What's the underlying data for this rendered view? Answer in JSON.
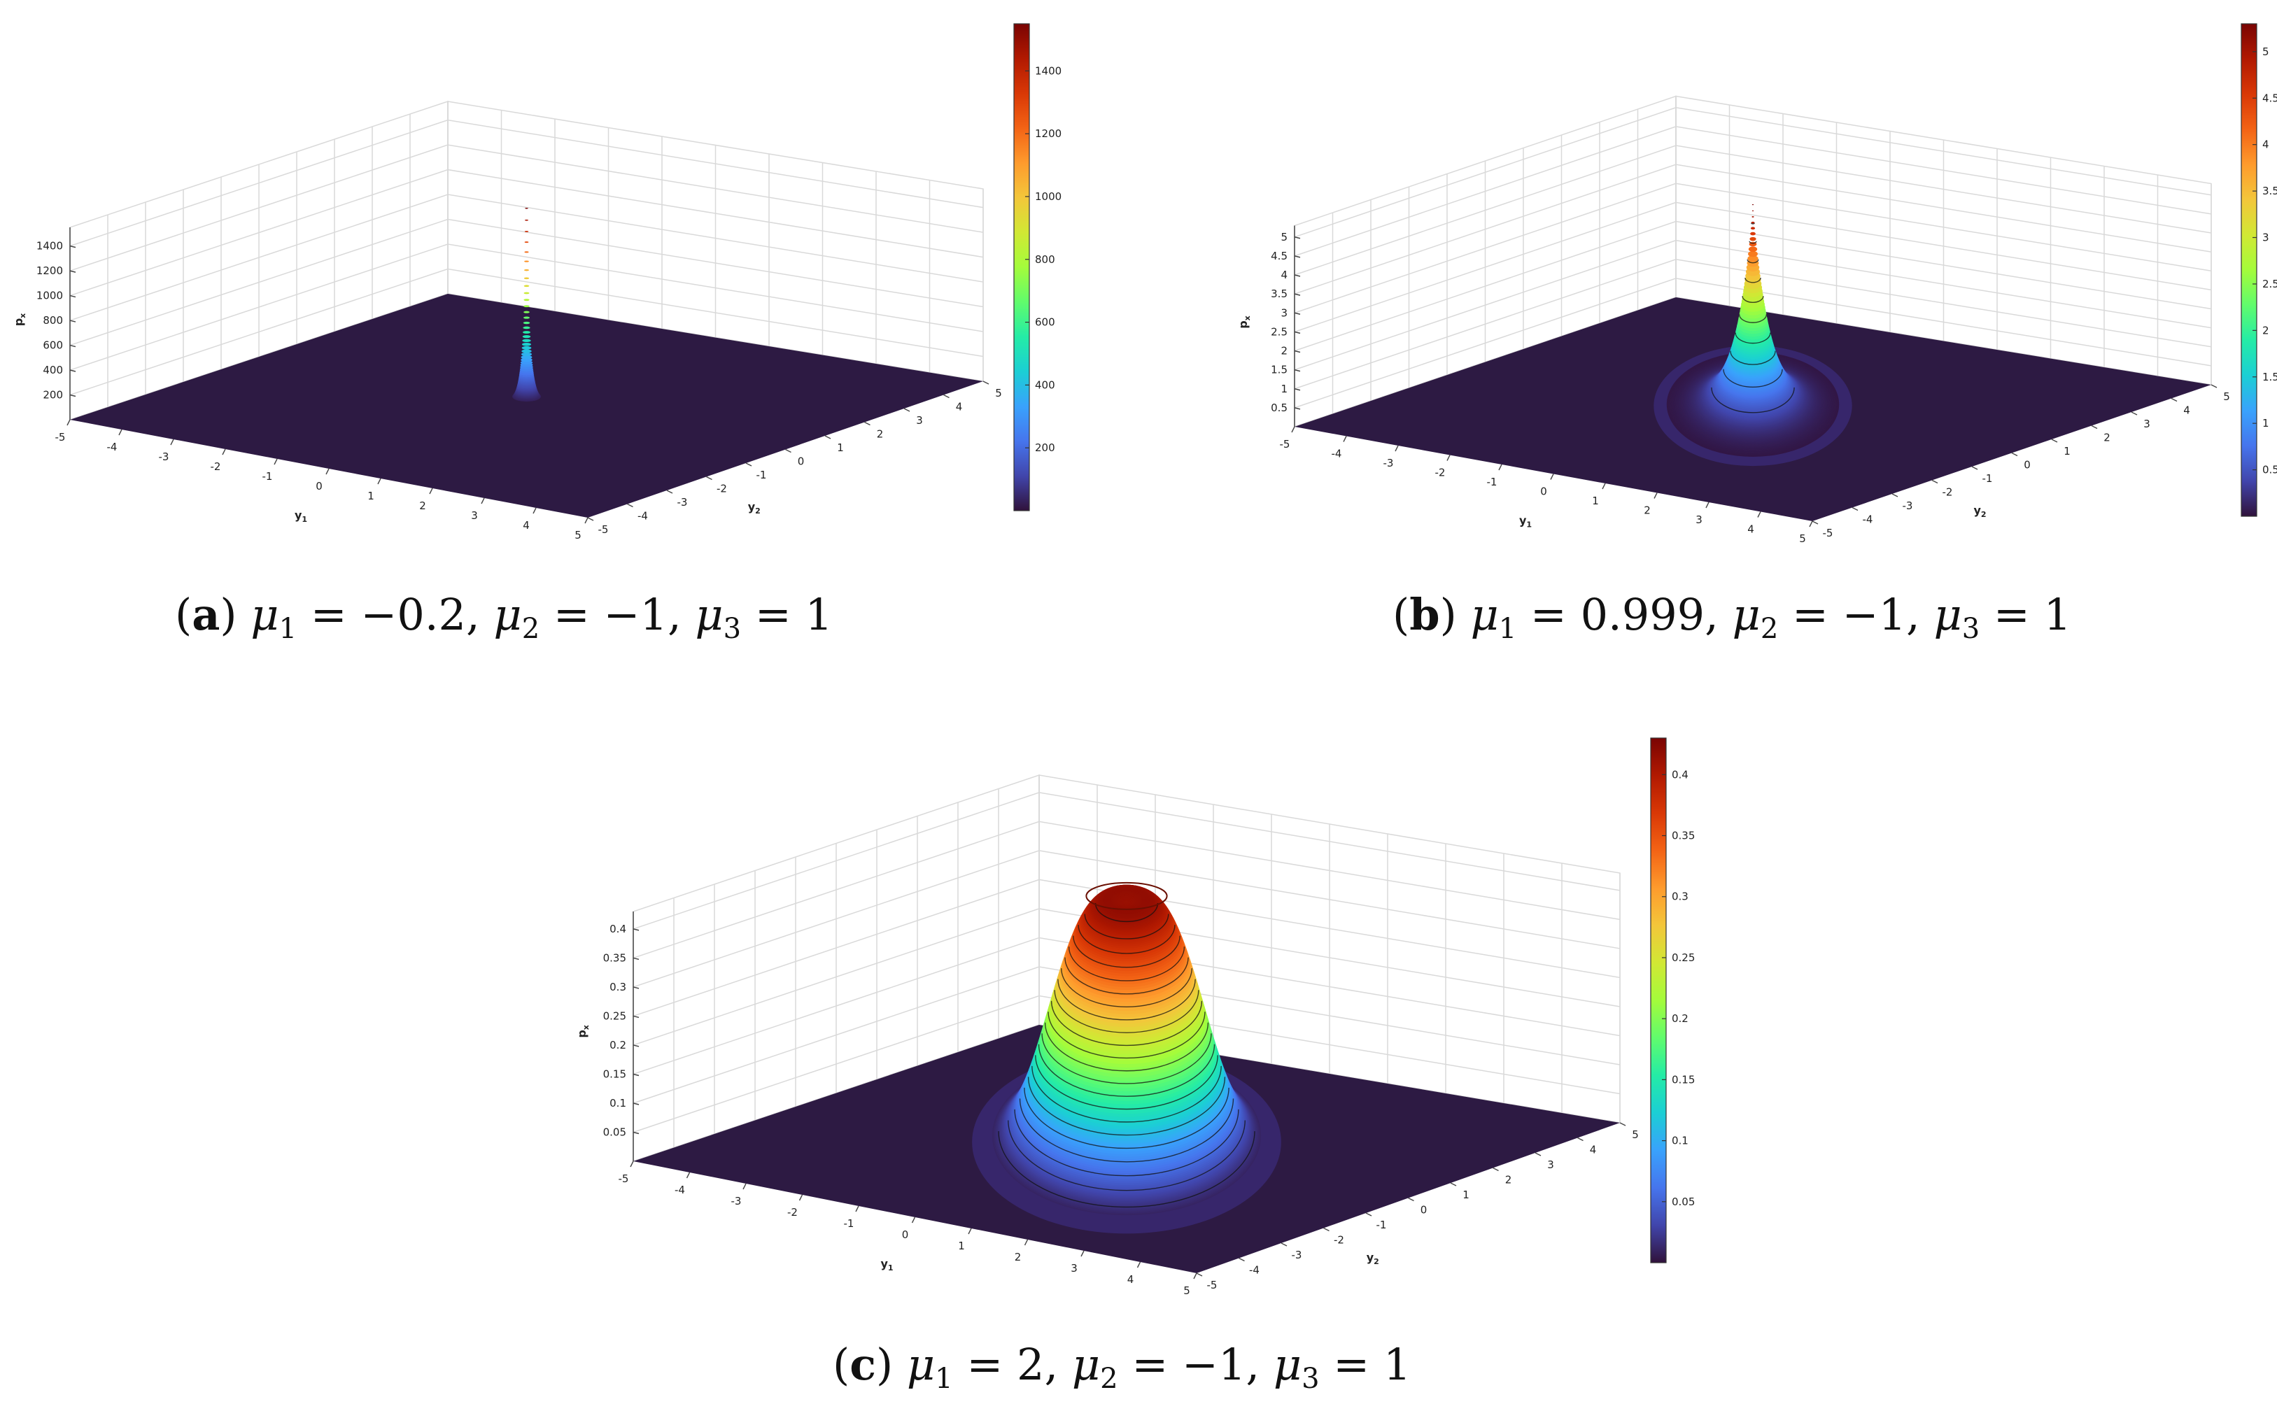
{
  "chart_data": [
    {
      "type": "surface",
      "caption": {
        "letter": "a",
        "mu1": "−0.2",
        "mu2": "−1",
        "mu3": "1"
      },
      "zlabel": "p",
      "zlabel_sub": "x",
      "xlabel": "y",
      "xlabel_sub": "1",
      "ylabel": "y",
      "ylabel_sub": "2",
      "xlim": [
        -5,
        5
      ],
      "ylim": [
        -5,
        5
      ],
      "zlim": [
        0,
        1550
      ],
      "peak": 1550,
      "shape": "spike",
      "z_ticks": [
        200,
        400,
        600,
        800,
        1000,
        1200,
        1400
      ],
      "colorbar_ticks": [
        200,
        400,
        600,
        800,
        1000,
        1200,
        1400
      ],
      "grid": true,
      "colorbar": "right"
    },
    {
      "type": "surface",
      "caption": {
        "letter": "b",
        "mu1": "0.999",
        "mu2": "−1",
        "mu3": "1"
      },
      "zlabel": "p",
      "zlabel_sub": "x",
      "xlabel": "y",
      "xlabel_sub": "1",
      "ylabel": "y",
      "ylabel_sub": "2",
      "xlim": [
        -5,
        5
      ],
      "ylim": [
        -5,
        5
      ],
      "zlim": [
        0,
        5.3
      ],
      "peak": 5.3,
      "shape": "cusp",
      "z_ticks": [
        0.5,
        1,
        1.5,
        2,
        2.5,
        3,
        3.5,
        4,
        4.5,
        5
      ],
      "colorbar_ticks": [
        0.5,
        1,
        1.5,
        2,
        2.5,
        3,
        3.5,
        4,
        4.5,
        5
      ],
      "grid": true,
      "colorbar": "right"
    },
    {
      "type": "surface",
      "caption": {
        "letter": "c",
        "mu1": "2",
        "mu2": "−1",
        "mu3": "1"
      },
      "zlabel": "p",
      "zlabel_sub": "x",
      "xlabel": "y",
      "xlabel_sub": "1",
      "ylabel": "y",
      "ylabel_sub": "2",
      "xlim": [
        -5,
        5
      ],
      "ylim": [
        -5,
        5
      ],
      "zlim": [
        0,
        0.43
      ],
      "peak": 0.43,
      "shape": "plateau",
      "z_ticks": [
        0.05,
        0.1,
        0.15,
        0.2,
        0.25,
        0.3,
        0.35,
        0.4
      ],
      "colorbar_ticks": [
        0.05,
        0.1,
        0.15,
        0.2,
        0.25,
        0.3,
        0.35,
        0.4
      ],
      "grid": true,
      "colorbar": "right"
    }
  ],
  "colors": {
    "floor": "#2d1a43",
    "colormap": [
      "#30123b",
      "#4145ab",
      "#4675ed",
      "#39a2fc",
      "#1bcfd4",
      "#24eca6",
      "#61fc6c",
      "#a4fc3b",
      "#d1e834",
      "#f3c63a",
      "#fe9b2d",
      "#f36315",
      "#d93806",
      "#b11901",
      "#7a0403"
    ]
  }
}
